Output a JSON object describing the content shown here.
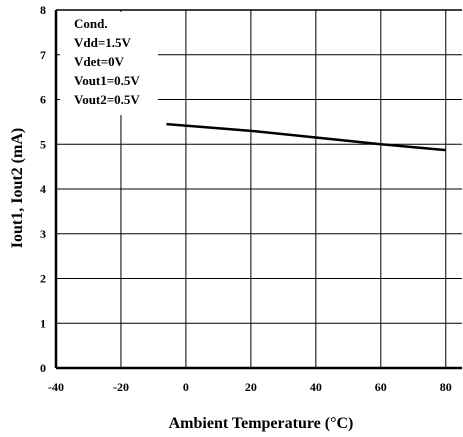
{
  "chart_data": {
    "type": "line",
    "xlabel": "Ambient Temperature (°C)",
    "ylabel": "Iout1, Iout2 (mA)",
    "xlim": [
      -40,
      85
    ],
    "ylim": [
      0,
      8
    ],
    "xticks": [
      -40,
      -20,
      0,
      20,
      40,
      60,
      80
    ],
    "yticks": [
      0,
      1,
      2,
      3,
      4,
      5,
      6,
      7,
      8
    ],
    "grid": true,
    "series": [
      {
        "x": [
          -6,
          20,
          40,
          60,
          80
        ],
        "y": [
          5.45,
          5.3,
          5.15,
          5.0,
          4.87
        ]
      }
    ],
    "annotation": {
      "lines": [
        "Cond.",
        "Vdd=1.5V",
        "Vdet=0V",
        "Vout1=0.5V",
        "Vout2=0.5V"
      ],
      "placement": "top-left"
    },
    "colors": {
      "line": "#000000",
      "grid": "#000000",
      "background": "#ffffff"
    }
  }
}
